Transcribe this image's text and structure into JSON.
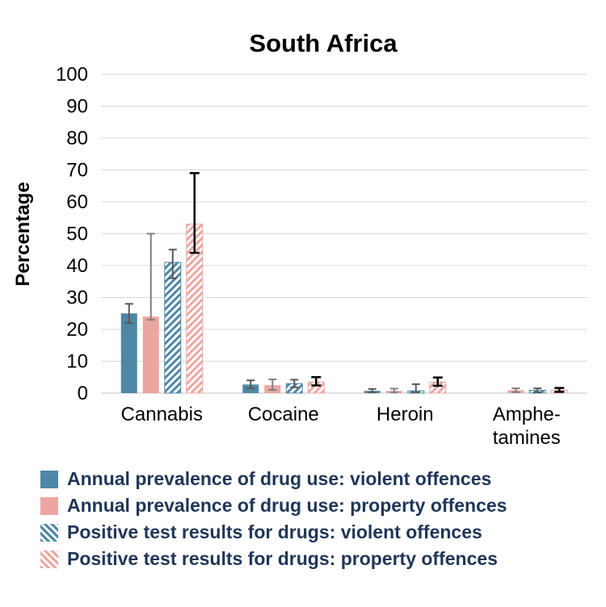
{
  "chart_data": {
    "type": "bar",
    "title": "South Africa",
    "xlabel": "",
    "ylabel": "Percentage",
    "ylim": [
      0,
      100
    ],
    "ytick_step": 10,
    "grid": true,
    "legend_position": "bottom",
    "categories": [
      "Cannabis",
      "Cocaine",
      "Heroin",
      "Amphe-\ntamines"
    ],
    "series": [
      {
        "name": "Annual prevalence of drug use: violent offences",
        "pattern": "solid",
        "color": "#4e87a5",
        "error_color": "#595959",
        "error_width": 2,
        "values": [
          25,
          2.7,
          0.7,
          0
        ],
        "error_low": [
          22,
          1.5,
          0.2,
          0
        ],
        "error_high": [
          28,
          4,
          1.3,
          0
        ]
      },
      {
        "name": "Annual prevalence of drug use: property offences",
        "pattern": "solid",
        "color": "#eba6a1",
        "error_color": "#808080",
        "error_width": 2,
        "values": [
          24,
          2.5,
          0.7,
          0.9
        ],
        "error_low": [
          23,
          1,
          0.2,
          0.3
        ],
        "error_high": [
          50,
          4.3,
          1.4,
          1.5
        ]
      },
      {
        "name": "Positive test results for drugs: violent offences",
        "pattern": "hatch",
        "color": "#4e87a5",
        "error_color": "#595959",
        "error_width": 2,
        "values": [
          41,
          3,
          0.7,
          0.9
        ],
        "error_low": [
          36,
          1.8,
          0.2,
          0.3
        ],
        "error_high": [
          45,
          4.2,
          2.8,
          1.5
        ]
      },
      {
        "name": "Positive test results for drugs: property offences",
        "pattern": "hatch",
        "color": "#eba6a1",
        "error_color": "#000000",
        "error_width": 2.5,
        "values": [
          53,
          3.5,
          3.5,
          0.9
        ],
        "error_low": [
          44,
          2.4,
          2.3,
          0.4
        ],
        "error_high": [
          69,
          5,
          4.9,
          1.6
        ]
      }
    ]
  }
}
